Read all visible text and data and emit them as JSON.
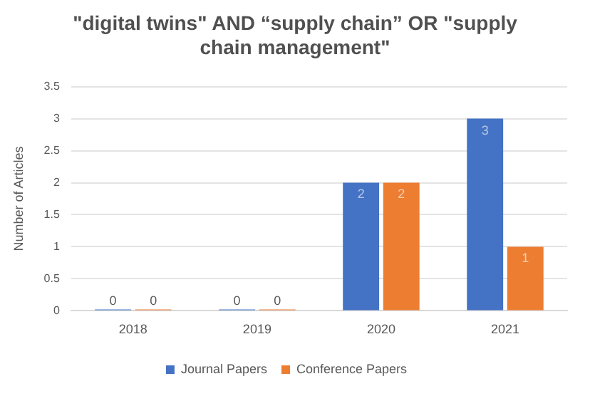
{
  "chart_data": {
    "type": "bar",
    "title": "\"digital twins\" AND “supply chain” OR \"supply chain management\"",
    "ylabel": "Number of Articles",
    "categories": [
      "2018",
      "2019",
      "2020",
      "2021"
    ],
    "series": [
      {
        "name": "Journal Papers",
        "color": "#4472c4",
        "values": [
          0,
          0,
          2,
          3
        ]
      },
      {
        "name": "Conference Papers",
        "color": "#ed7d31",
        "values": [
          0,
          0,
          2,
          1
        ]
      }
    ],
    "ylim": [
      0,
      3.5
    ],
    "yticks": [
      0,
      0.5,
      1,
      1.5,
      2,
      2.5,
      3,
      3.5
    ],
    "grid": "y",
    "legend": "bottom",
    "data_labels": true
  }
}
